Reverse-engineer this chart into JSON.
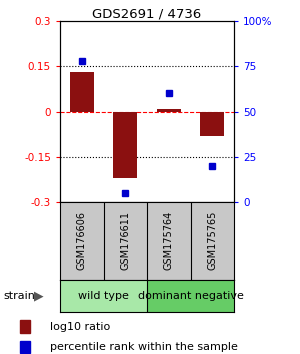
{
  "title": "GDS2691 / 4736",
  "samples": [
    "GSM176606",
    "GSM176611",
    "GSM175764",
    "GSM175765"
  ],
  "log10_ratio": [
    0.13,
    -0.22,
    0.01,
    -0.08
  ],
  "percentile_rank": [
    78,
    5,
    60,
    20
  ],
  "groups": [
    {
      "label": "wild type",
      "samples": [
        0,
        1
      ],
      "color": "#a8e8a8"
    },
    {
      "label": "dominant negative",
      "samples": [
        2,
        3
      ],
      "color": "#66cc66"
    }
  ],
  "bar_color": "#8B1010",
  "dot_color": "#0000CC",
  "ylim_left": [
    -0.3,
    0.3
  ],
  "ylim_right": [
    0,
    100
  ],
  "yticks_left": [
    -0.3,
    -0.15,
    0,
    0.15,
    0.3
  ],
  "yticks_right": [
    0,
    25,
    50,
    75,
    100
  ],
  "ytick_labels_right": [
    "0",
    "25",
    "50",
    "75",
    "100%"
  ],
  "hlines": [
    0.15,
    0.0,
    -0.15
  ],
  "hline_styles": [
    "dotted",
    "dashed_red",
    "dotted"
  ],
  "strain_label": "strain",
  "legend_bar_label": "log10 ratio",
  "legend_dot_label": "percentile rank within the sample",
  "sample_box_color": "#c8c8c8",
  "bar_width": 0.55
}
